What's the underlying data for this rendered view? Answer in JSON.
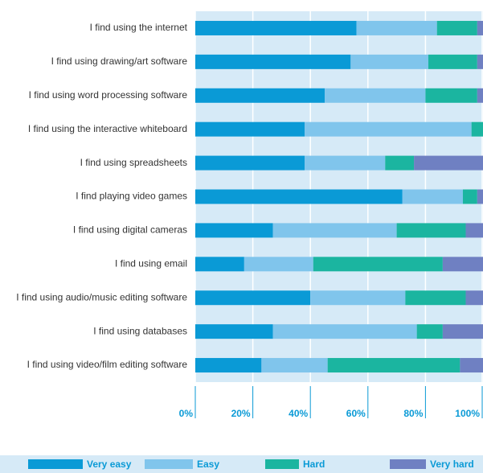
{
  "chart_data": {
    "type": "stacked-barh",
    "categories": [
      "I find using the internet",
      "I find using drawing/art software",
      "I find using word processing software",
      "I find using the interactive whiteboard",
      "I find using spreadsheets",
      "I find playing video games",
      "I find using digital cameras",
      "I find using email",
      "I find using audio/music editing software",
      "I find using databases",
      "I find using video/film editing software"
    ],
    "series": [
      {
        "name": "Very easy",
        "color": "#0a9ad6",
        "values": [
          56,
          54,
          45,
          38,
          38,
          72,
          27,
          17,
          40,
          27,
          23
        ]
      },
      {
        "name": "Easy",
        "color": "#80c5ec",
        "values": [
          28,
          27,
          35,
          58,
          28,
          21,
          43,
          24,
          33,
          50,
          23
        ]
      },
      {
        "name": "Hard",
        "color": "#1bb5a0",
        "values": [
          14,
          17,
          18,
          4,
          10,
          5,
          24,
          45,
          21,
          9,
          46
        ]
      },
      {
        "name": "Very hard",
        "color": "#6f80c2",
        "values": [
          2,
          2,
          2,
          0,
          24,
          2,
          6,
          14,
          6,
          14,
          8
        ]
      }
    ],
    "xlim": [
      0,
      100
    ],
    "xticks": [
      {
        "value": 0,
        "label": "0%"
      },
      {
        "value": 20,
        "label": "20%"
      },
      {
        "value": 40,
        "label": "40%"
      },
      {
        "value": 60,
        "label": "60%"
      },
      {
        "value": 80,
        "label": "80%"
      },
      {
        "value": 100,
        "label": "100%"
      }
    ],
    "grid": true
  }
}
